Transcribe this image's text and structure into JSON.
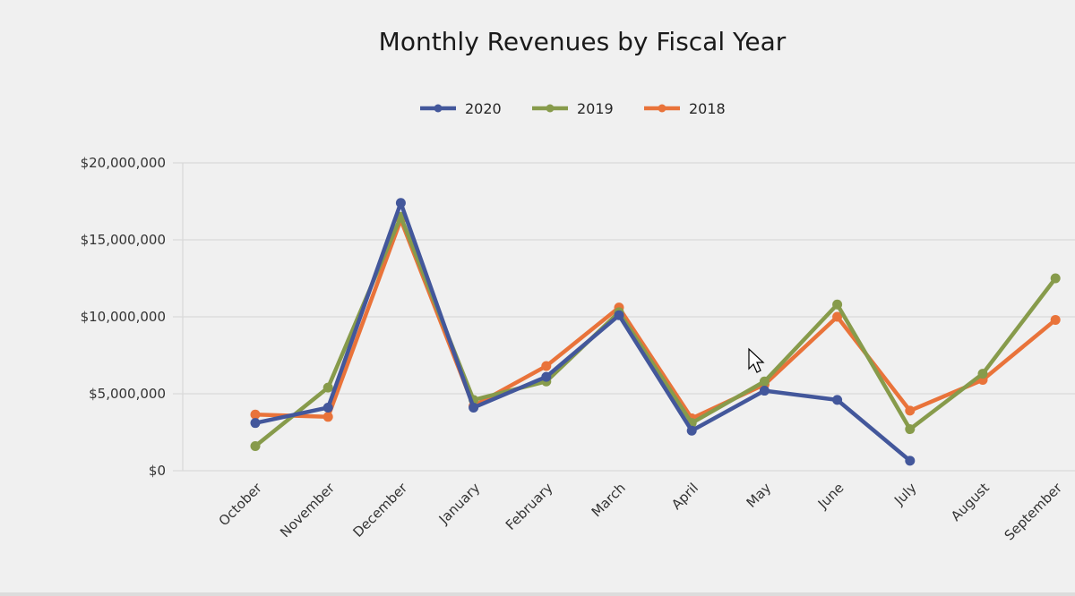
{
  "chart_data": {
    "type": "line",
    "title": "Monthly Revenues by Fiscal Year",
    "xlabel": "",
    "ylabel": "",
    "categories": [
      "October",
      "November",
      "December",
      "January",
      "February",
      "March",
      "April",
      "May",
      "June",
      "July",
      "August",
      "September"
    ],
    "ylim": [
      0,
      20000000
    ],
    "yticks": [
      0,
      5000000,
      10000000,
      15000000,
      20000000
    ],
    "ytick_labels": [
      "$0",
      "$5,000,000",
      "$10,000,000",
      "$15,000,000",
      "$20,000,000"
    ],
    "grid": true,
    "legend_position": "top",
    "series": [
      {
        "name": "2020",
        "color": "#43579b",
        "values": [
          3100000,
          4100000,
          17400000,
          4100000,
          6100000,
          10100000,
          2600000,
          5200000,
          4600000,
          650000,
          null,
          null
        ]
      },
      {
        "name": "2019",
        "color": "#879b4b",
        "values": [
          1600000,
          5400000,
          16500000,
          4600000,
          5800000,
          10300000,
          3100000,
          5800000,
          10800000,
          2700000,
          6300000,
          12500000
        ]
      },
      {
        "name": "2018",
        "color": "#e9733a",
        "values": [
          3650000,
          3500000,
          16300000,
          4200000,
          6800000,
          10600000,
          3400000,
          5600000,
          10000000,
          3900000,
          5900000,
          9800000
        ]
      }
    ]
  },
  "cursor": {
    "icon": "mouse-pointer-icon"
  }
}
